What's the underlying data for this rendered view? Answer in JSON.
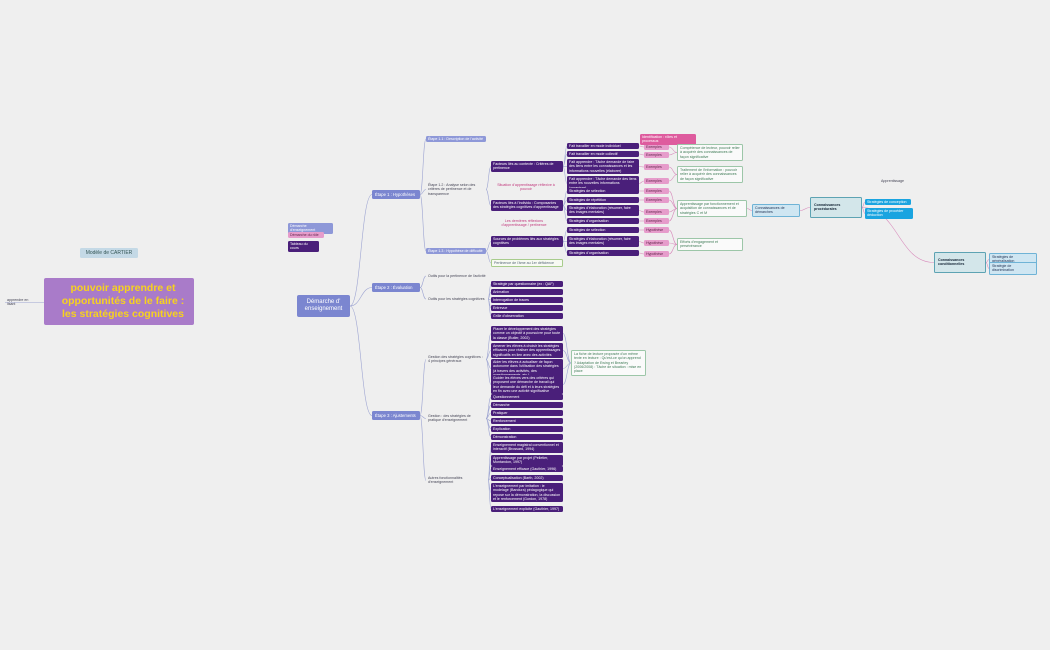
{
  "nodes": [
    "Modèle de CARTIER",
    "pouvoir apprendre et opportunités de le faire : les stratégies cognitives",
    "apprendre en lisant",
    "Démarche d' enseignement",
    "Démarche d'enseignement",
    "Démarche du rôle",
    "Tableau du cours",
    "Étape 1 : Hypothèses",
    "Étape 2 : Évaluation",
    "Étape 3 : Ajustements",
    "Étape 1.1 : Description de l'activité",
    "Étape 1.2 : Analyse selon des critères de pertinence et de transparence",
    "Étape 1.3 : Hypothèse de difficulté",
    "Facteurs liés au contexte : Critères de pertinence",
    "Situation d'apprentissage réflexive à pouvoir",
    "Facteurs liés à l'individu : Composantes des stratégies cognitives d'apprentissage",
    "Les dernières réflexions d'apprentissage / pertinence",
    "Sources de problèmes liés aux stratégies cognitives",
    "Pertinence de l'âme au 1er déficience",
    "Fait travailler en mode individuel",
    "Fait travailler en mode collectif",
    "Fait apprendre : Tâche demande de faire des liens entre les connaissances et les informations nouvelles (élaborer)",
    "Fait apprendre : Tâche demande des liens entre les nouvelles informations (organiser)",
    "Stratégies de sélection",
    "Stratégies de répétition",
    "Stratégies d'élaboration (résumer, faire des images mentales)",
    "Stratégies d'organisation",
    "Stratégies de sélection",
    "Stratégies d'élaboration (résumer, faire des images mentales)",
    "Stratégies d'organisation",
    "Exemples",
    "Exemples",
    "Exemples",
    "Exemples",
    "Exemples",
    "Exemples",
    "Exemples",
    "Exemples",
    "Hypothèse",
    "Hypothèse",
    "Hypothèse",
    "Identification : rôles et processus",
    "Compétence de lecteur, pouvoir relier à acquérir des connaissances de façon significative",
    "Traitement de l'information : pouvoir relier à acquérir des connaissances de façon significative",
    "Apprentissage par fonctionnement et acquisition de connaissances et de stratégies C et M",
    "Efforts d'engagement et persévérance",
    "Connaissances de démarches",
    "Connaissances procédurales",
    "Stratégies de conception",
    "Stratégies de procéder déduction",
    "Apprentissage",
    "Connaissances conditionnelles",
    "Stratégies de généralisation",
    "Stratégie de discrimination",
    "Outils pour la pertinence de l'activité",
    "Outils pour les stratégies cognitives",
    "Stratégie par questionnaire (ex : QAF)",
    "Animation",
    "Interrogation de traces",
    "Entrevue",
    "Grille d'observation",
    "Gestion des stratégies cognitives : 4 principes généraux",
    "Placer le développement des stratégies comme un objectif à poursuivre pour toute la classe (Butler, 2002)",
    "Amener les élèves à choisir les stratégies efficaces pour réaliser des apprentissages significatifs en lien avec des activités",
    "Aider les élèves à actualiser de façon autonome dans l'utilisation des stratégies (à travers des activités, des questionnements, etc.)",
    "Guider les élèves vers des critères qui proposent une démarche de travail qui leur demande du défi et à leurs stratégies en fin avec une activité significative",
    "La fiche de lecture proposée d'un même texte en lecture : Qu'est-ce qu'on apprend ? Adaptation de Ewing et Brearley (2006/2008) : Tâche de situation : mise en place",
    "Gestion : des stratégies de pratique d'enseignement",
    "Questionnement",
    "Démarche",
    "Pratiquer",
    "Renforcement",
    "Explication",
    "Démonstration",
    "Autres fonctionnalités d'enseignement",
    "Enseignement magistral conventionnel et interactif (Brossard, 1994)",
    "Apprentissage par projet (Pelletier, Montandon, 1997)",
    "Enseignement efficace (Gauthier, 1996)",
    "Conceptualisation (Barth, 2002)",
    "L'enseignement par imitation : le modelage (Bandura) pédagogique qui repose sur la démonstration, la discussion et le renforcement (Gordon, 1978)",
    "L'enseignement explicite (Gauthier, 1997)"
  ]
}
